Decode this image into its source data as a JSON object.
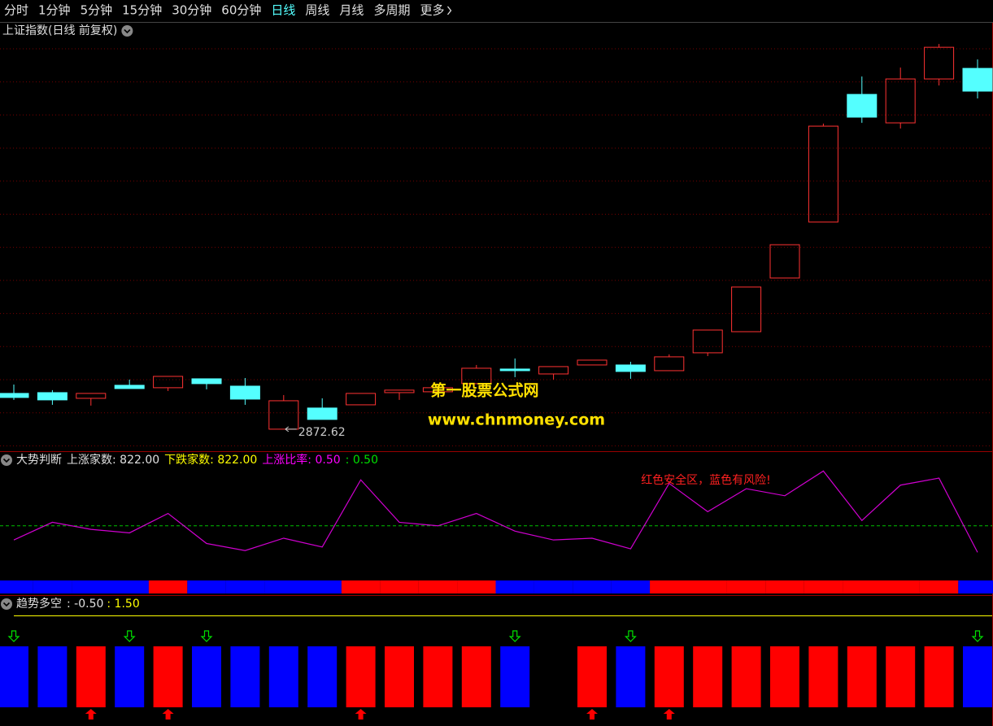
{
  "menu": {
    "items": [
      "分时",
      "1分钟",
      "5分钟",
      "15分钟",
      "30分钟",
      "60分钟",
      "日线",
      "周线",
      "月线",
      "多周期",
      "更多"
    ],
    "active": "日线"
  },
  "watermark": {
    "title": "第一股票公式网",
    "url": "www.chnmoney.com"
  },
  "chart_data": [
    {
      "type": "candlestick",
      "title": "上证指数(日线 前复权)",
      "ylim": [
        2839,
        3468
      ],
      "up_color": "#ff3232",
      "down_color": "#54ffff",
      "open": [
        2927.2,
        2928.4,
        2919.7,
        2939.6,
        2935.9,
        2949.5,
        2938.3,
        2872.62,
        2904.9,
        2909.8,
        2928.4,
        2929.7,
        2942.1,
        2964.4,
        2956.9,
        2970.6,
        2970.6,
        2961.9,
        2989.2,
        3021.4,
        3103.3,
        3188.8,
        3383.5,
        3340.1,
        3407.1,
        3423.2
      ],
      "high": [
        2940.8,
        2932.2,
        2927.2,
        2948.3,
        2953.2,
        2949.5,
        2950.7,
        2924.7,
        2919.7,
        2927.2,
        2932.2,
        2935.9,
        2970.6,
        2980.5,
        2968.1,
        2978.0,
        2975.5,
        2986.7,
        3023.9,
        3089.6,
        3154.1,
        3338.9,
        3410.8,
        3424.4,
        3460.4,
        3436.8
      ],
      "low": [
        2917.3,
        2909.8,
        2908.6,
        2934.6,
        2930.9,
        2933.4,
        2909.8,
        2872.62,
        2887.5,
        2909.8,
        2917.3,
        2929.7,
        2942.1,
        2952.0,
        2948.3,
        2970.6,
        2949.5,
        2961.9,
        2984.2,
        3021.4,
        3103.3,
        3188.8,
        3340.1,
        3331.4,
        3397.1,
        3377.3
      ],
      "close": [
        2921.0,
        2917.3,
        2927.2,
        2934.6,
        2953.2,
        2942.1,
        2918.5,
        2916.0,
        2887.5,
        2927.2,
        2932.2,
        2935.9,
        2965.6,
        2961.9,
        2968.1,
        2978.0,
        2960.7,
        2983.0,
        3023.9,
        3089.6,
        3154.1,
        3335.1,
        3348.8,
        3407.1,
        3455.4,
        3388.5
      ]
    },
    {
      "type": "line",
      "title": "大势判断",
      "legend": [
        {
          "text": "上涨家数: 822.00",
          "color": "#e0e0e0"
        },
        {
          "text": "下跌家数: 822.00",
          "color": "#ffff00"
        },
        {
          "text": "上涨比率: 0.50",
          "color": "#ff00ff"
        },
        {
          "text": ": 0.50",
          "color": "#00e000"
        }
      ],
      "annotation": "红色安全区，蓝色有风险!",
      "annotation_color": "#ff2020",
      "values": [
        0.42,
        0.52,
        0.48,
        0.46,
        0.57,
        0.4,
        0.36,
        0.43,
        0.38,
        0.76,
        0.52,
        0.5,
        0.57,
        0.47,
        0.42,
        0.43,
        0.37,
        0.74,
        0.58,
        0.71,
        0.67,
        0.81,
        0.53,
        0.73,
        0.77,
        0.35
      ],
      "color": "#d000d0",
      "ylim": [
        0.2,
        0.83
      ],
      "reference": 0.5,
      "reference_color": "#00c000",
      "band_colors": [
        "#0000ff",
        "#0000ff",
        "#0000ff",
        "#0000ff",
        "#ff0000",
        "#0000ff",
        "#0000ff",
        "#0000ff",
        "#0000ff",
        "#ff0000",
        "#ff0000",
        "#ff0000",
        "#ff0000",
        "#0000ff",
        "#0000ff",
        "#0000ff",
        "#0000ff",
        "#ff0000",
        "#ff0000",
        "#ff0000",
        "#ff0000",
        "#ff0000",
        "#ff0000",
        "#ff0000",
        "#ff0000",
        "#0000ff"
      ]
    },
    {
      "type": "state-bars",
      "title": "趋势多空",
      "legend": [
        {
          "text": ": -0.50",
          "color": "#e0e0e0"
        },
        {
          "text": ": 1.50",
          "color": "#ffff00"
        }
      ],
      "colors": [
        "#0000ff",
        "#0000ff",
        "#ff0000",
        "#0000ff",
        "#ff0000",
        "#0000ff",
        "#0000ff",
        "#0000ff",
        "#0000ff",
        "#ff0000",
        "#ff0000",
        "#ff0000",
        "#ff0000",
        "#0000ff",
        null,
        "#ff0000",
        "#0000ff",
        "#ff0000",
        "#ff0000",
        "#ff0000",
        "#ff0000",
        "#ff0000",
        "#ff0000",
        "#ff0000",
        "#ff0000",
        "#0000ff"
      ],
      "signals": [
        "sell",
        null,
        "buy",
        "sell",
        "buy",
        "sell",
        null,
        null,
        null,
        "buy",
        null,
        null,
        null,
        "sell",
        null,
        "buy",
        "sell",
        "buy",
        null,
        null,
        null,
        null,
        null,
        null,
        null,
        "sell"
      ],
      "line_color": "#ffff00"
    }
  ]
}
